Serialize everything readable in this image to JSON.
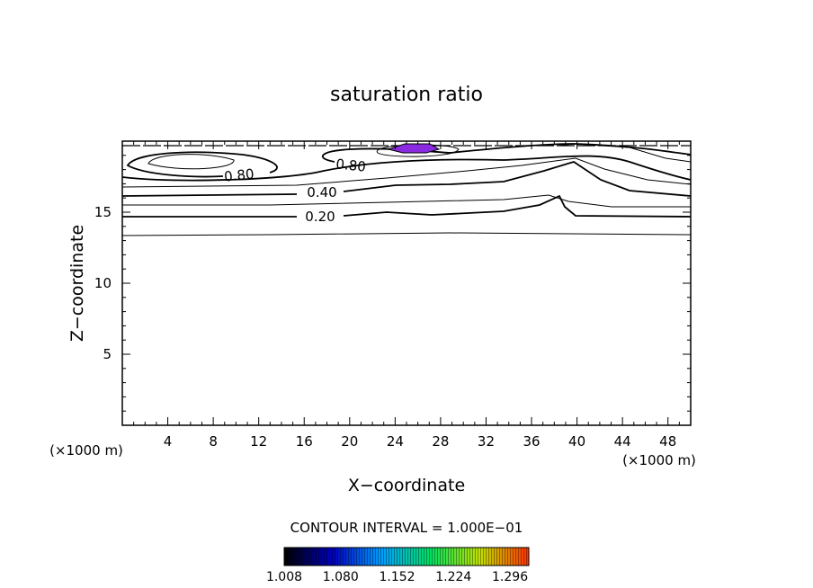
{
  "chart_data": {
    "type": "contour",
    "title": "saturation ratio",
    "xlabel": "X−coordinate",
    "ylabel": "Z−coordinate",
    "x_unit_left": "(×1000 m)",
    "x_unit_right": "(×1000 m)",
    "xlim": [
      0,
      50
    ],
    "ylim": [
      0,
      20
    ],
    "x_ticks": [
      4,
      8,
      12,
      16,
      20,
      24,
      28,
      32,
      36,
      40,
      44,
      48
    ],
    "y_ticks": [
      5,
      10,
      15
    ],
    "contour_interval_text": "CONTOUR INTERVAL = 1.000E−01",
    "contour_labels": [
      {
        "text": "0.20",
        "x": 17.5,
        "z": 14.7
      },
      {
        "text": "0.40",
        "x": 17.5,
        "z": 16.4
      },
      {
        "text": "0.80",
        "x": 10.5,
        "z": 17.8
      },
      {
        "text": "0.80",
        "x": 20.0,
        "z": 18.3
      }
    ],
    "colorbar": {
      "min": 1.008,
      "max": 1.32,
      "tick_labels": [
        "1.008",
        "1.080",
        "1.152",
        "1.224",
        "1.296"
      ],
      "colors": [
        "#000000",
        "#0000c0",
        "#00a0ff",
        "#00e060",
        "#c0e000",
        "#ff3000"
      ]
    },
    "colors": {
      "supersaturated_region": "#8a2be2",
      "lines": "#000000"
    },
    "grid": false
  }
}
